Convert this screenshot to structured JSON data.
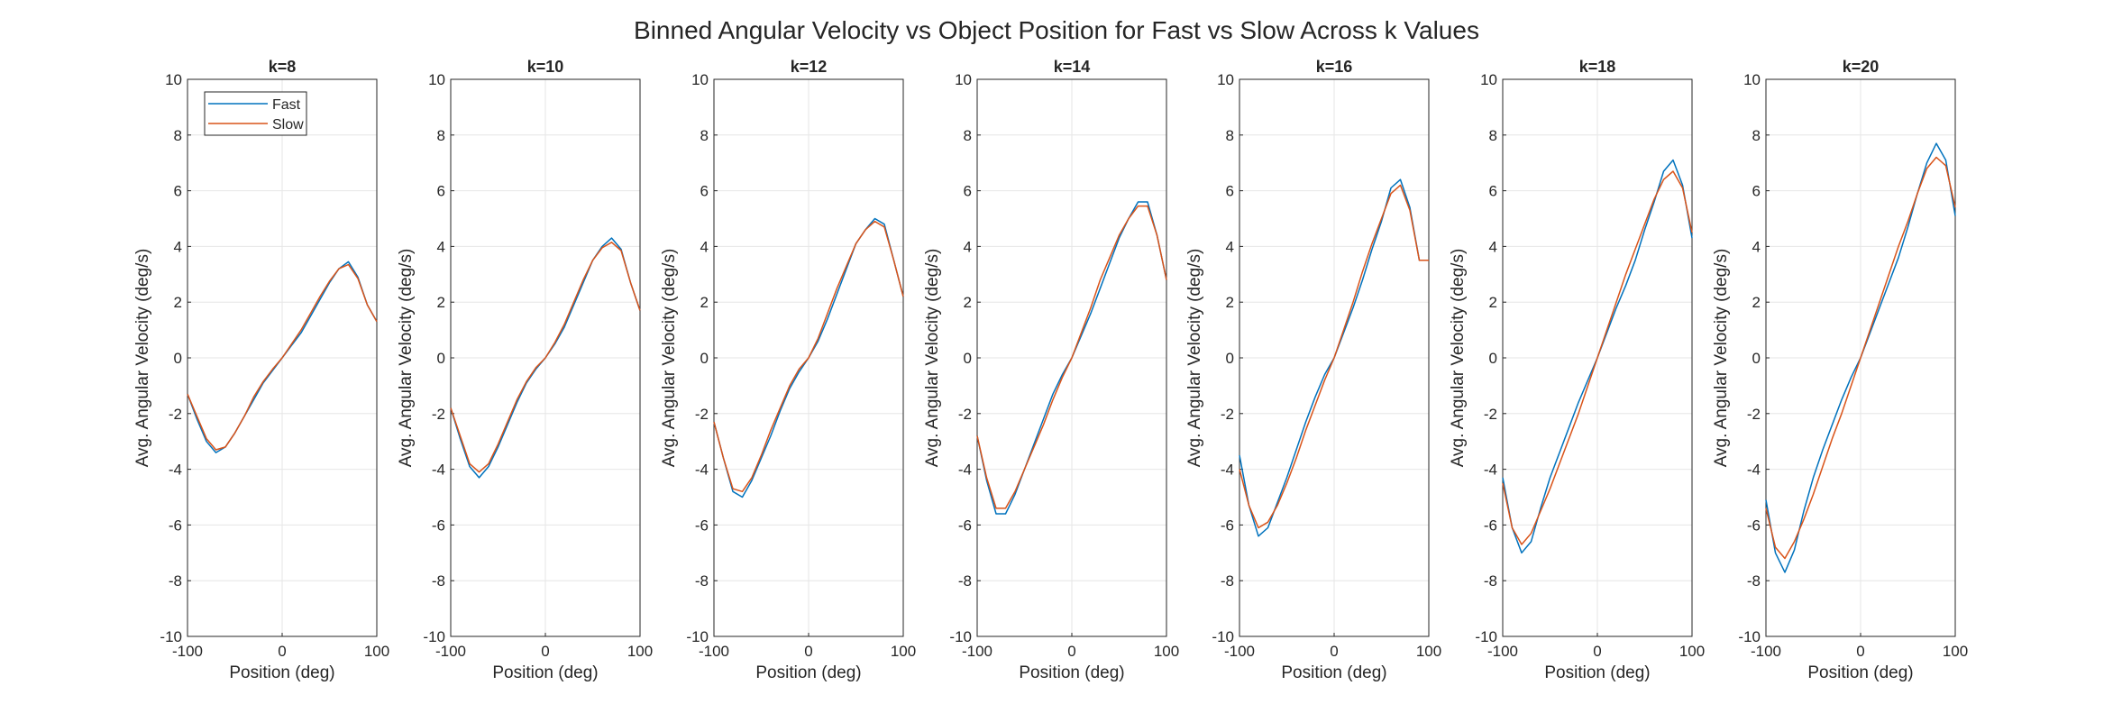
{
  "figure": {
    "title": "Binned Angular Velocity vs Object Position for Fast vs Slow Across k Values"
  },
  "colors": {
    "fast": "#0072BD",
    "slow": "#D95319",
    "axis": "#262626",
    "grid": "#e6e6e6"
  },
  "chart_data": [
    {
      "type": "line",
      "title": "k=8",
      "xlabel": "Position (deg)",
      "ylabel": "Avg. Angular Velocity (deg/s)",
      "xlim": [
        -100,
        100
      ],
      "ylim": [
        -10,
        10
      ],
      "xticks": [
        -100,
        0,
        100
      ],
      "yticks": [
        -10,
        -8,
        -6,
        -4,
        -2,
        0,
        2,
        4,
        6,
        8,
        10
      ],
      "grid": true,
      "legend": "top-left",
      "x": [
        -100,
        -90,
        -80,
        -70,
        -60,
        -50,
        -40,
        -30,
        -20,
        -10,
        0,
        10,
        20,
        30,
        40,
        50,
        60,
        70,
        80,
        90,
        100
      ],
      "series": [
        {
          "name": "Fast",
          "values": [
            -1.3,
            -2.2,
            -3.0,
            -3.4,
            -3.2,
            -2.7,
            -2.1,
            -1.5,
            -0.9,
            -0.45,
            0,
            0.45,
            0.9,
            1.5,
            2.1,
            2.7,
            3.2,
            3.45,
            2.9,
            1.9,
            1.3
          ]
        },
        {
          "name": "Slow",
          "values": [
            -1.3,
            -2.1,
            -2.9,
            -3.3,
            -3.2,
            -2.7,
            -2.1,
            -1.4,
            -0.85,
            -0.4,
            0,
            0.5,
            1.0,
            1.6,
            2.2,
            2.75,
            3.2,
            3.35,
            2.85,
            1.9,
            1.3
          ]
        }
      ]
    },
    {
      "type": "line",
      "title": "k=10",
      "xlabel": "Position (deg)",
      "ylabel": "Avg. Angular Velocity (deg/s)",
      "xlim": [
        -100,
        100
      ],
      "ylim": [
        -10,
        10
      ],
      "xticks": [
        -100,
        0,
        100
      ],
      "yticks": [
        -10,
        -8,
        -6,
        -4,
        -2,
        0,
        2,
        4,
        6,
        8,
        10
      ],
      "grid": true,
      "x": [
        -100,
        -90,
        -80,
        -70,
        -60,
        -50,
        -40,
        -30,
        -20,
        -10,
        0,
        10,
        20,
        30,
        40,
        50,
        60,
        70,
        80,
        90,
        100
      ],
      "series": [
        {
          "name": "Fast",
          "values": [
            -1.8,
            -2.9,
            -3.9,
            -4.3,
            -3.9,
            -3.2,
            -2.4,
            -1.6,
            -0.9,
            -0.4,
            0,
            0.5,
            1.1,
            1.9,
            2.7,
            3.5,
            4.0,
            4.3,
            3.9,
            2.7,
            1.7
          ]
        },
        {
          "name": "Slow",
          "values": [
            -1.8,
            -2.8,
            -3.8,
            -4.1,
            -3.8,
            -3.1,
            -2.3,
            -1.5,
            -0.85,
            -0.35,
            0,
            0.55,
            1.2,
            2.0,
            2.8,
            3.5,
            3.95,
            4.15,
            3.85,
            2.7,
            1.7
          ]
        }
      ]
    },
    {
      "type": "line",
      "title": "k=12",
      "xlabel": "Position (deg)",
      "ylabel": "Avg. Angular Velocity (deg/s)",
      "xlim": [
        -100,
        100
      ],
      "ylim": [
        -10,
        10
      ],
      "xticks": [
        -100,
        0,
        100
      ],
      "yticks": [
        -10,
        -8,
        -6,
        -4,
        -2,
        0,
        2,
        4,
        6,
        8,
        10
      ],
      "grid": true,
      "x": [
        -100,
        -90,
        -80,
        -70,
        -60,
        -50,
        -40,
        -30,
        -20,
        -10,
        0,
        10,
        20,
        30,
        40,
        50,
        60,
        70,
        80,
        90,
        100
      ],
      "series": [
        {
          "name": "Fast",
          "values": [
            -2.3,
            -3.6,
            -4.8,
            -5.0,
            -4.4,
            -3.6,
            -2.8,
            -1.9,
            -1.1,
            -0.5,
            0,
            0.6,
            1.4,
            2.3,
            3.2,
            4.1,
            4.6,
            5.0,
            4.8,
            3.5,
            2.2
          ]
        },
        {
          "name": "Slow",
          "values": [
            -2.3,
            -3.6,
            -4.7,
            -4.8,
            -4.3,
            -3.5,
            -2.6,
            -1.8,
            -1.0,
            -0.4,
            0,
            0.7,
            1.6,
            2.5,
            3.3,
            4.1,
            4.6,
            4.9,
            4.7,
            3.5,
            2.2
          ]
        }
      ]
    },
    {
      "type": "line",
      "title": "k=14",
      "xlabel": "Position (deg)",
      "ylabel": "Avg. Angular Velocity (deg/s)",
      "xlim": [
        -100,
        100
      ],
      "ylim": [
        -10,
        10
      ],
      "xticks": [
        -100,
        0,
        100
      ],
      "yticks": [
        -10,
        -8,
        -6,
        -4,
        -2,
        0,
        2,
        4,
        6,
        8,
        10
      ],
      "grid": true,
      "x": [
        -100,
        -90,
        -80,
        -70,
        -60,
        -50,
        -40,
        -30,
        -20,
        -10,
        0,
        10,
        20,
        30,
        40,
        50,
        60,
        70,
        80,
        90,
        100
      ],
      "series": [
        {
          "name": "Fast",
          "values": [
            -2.8,
            -4.4,
            -5.6,
            -5.6,
            -4.9,
            -4.0,
            -3.1,
            -2.2,
            -1.3,
            -0.6,
            0,
            0.8,
            1.6,
            2.5,
            3.4,
            4.3,
            5.0,
            5.6,
            5.6,
            4.4,
            2.8
          ]
        },
        {
          "name": "Slow",
          "values": [
            -2.8,
            -4.3,
            -5.4,
            -5.4,
            -4.8,
            -4.0,
            -3.2,
            -2.4,
            -1.5,
            -0.7,
            0,
            0.9,
            1.8,
            2.8,
            3.6,
            4.4,
            5.0,
            5.45,
            5.45,
            4.4,
            2.8
          ]
        }
      ]
    },
    {
      "type": "line",
      "title": "k=16",
      "xlabel": "Position (deg)",
      "ylabel": "Avg. Angular Velocity (deg/s)",
      "xlim": [
        -100,
        100
      ],
      "ylim": [
        -10,
        10
      ],
      "xticks": [
        -100,
        0,
        100
      ],
      "yticks": [
        -10,
        -8,
        -6,
        -4,
        -2,
        0,
        2,
        4,
        6,
        8,
        10
      ],
      "grid": true,
      "x": [
        -100,
        -90,
        -80,
        -70,
        -60,
        -50,
        -40,
        -30,
        -20,
        -10,
        0,
        10,
        20,
        30,
        40,
        50,
        60,
        70,
        80,
        90,
        100
      ],
      "series": [
        {
          "name": "Fast",
          "values": [
            -3.5,
            -5.3,
            -6.4,
            -6.1,
            -5.2,
            -4.3,
            -3.3,
            -2.3,
            -1.4,
            -0.6,
            0,
            0.9,
            1.8,
            2.8,
            3.9,
            4.9,
            6.1,
            6.4,
            5.4,
            3.5,
            3.5
          ]
        },
        {
          "name": "Slow",
          "values": [
            -4.0,
            -5.3,
            -6.1,
            -5.9,
            -5.3,
            -4.5,
            -3.6,
            -2.6,
            -1.7,
            -0.8,
            0,
            1.0,
            2.0,
            3.1,
            4.1,
            5.0,
            5.9,
            6.2,
            5.3,
            3.5,
            3.5
          ]
        }
      ]
    },
    {
      "type": "line",
      "title": "k=18",
      "xlabel": "Position (deg)",
      "ylabel": "Avg. Angular Velocity (deg/s)",
      "xlim": [
        -100,
        100
      ],
      "ylim": [
        -10,
        10
      ],
      "xticks": [
        -100,
        0,
        100
      ],
      "yticks": [
        -10,
        -8,
        -6,
        -4,
        -2,
        0,
        2,
        4,
        6,
        8,
        10
      ],
      "grid": true,
      "x": [
        -100,
        -90,
        -80,
        -70,
        -60,
        -50,
        -40,
        -30,
        -20,
        -10,
        0,
        10,
        20,
        30,
        40,
        50,
        60,
        70,
        80,
        90,
        100
      ],
      "series": [
        {
          "name": "Fast",
          "values": [
            -4.3,
            -6.1,
            -7.0,
            -6.6,
            -5.4,
            -4.3,
            -3.4,
            -2.5,
            -1.6,
            -0.8,
            0,
            0.9,
            1.8,
            2.6,
            3.5,
            4.6,
            5.6,
            6.7,
            7.1,
            6.2,
            4.3
          ]
        },
        {
          "name": "Slow",
          "values": [
            -4.5,
            -6.1,
            -6.7,
            -6.3,
            -5.5,
            -4.7,
            -3.8,
            -2.9,
            -2.0,
            -1.0,
            0,
            1.0,
            2.0,
            3.0,
            3.9,
            4.8,
            5.7,
            6.4,
            6.7,
            6.1,
            4.5
          ]
        }
      ]
    },
    {
      "type": "line",
      "title": "k=20",
      "xlabel": "Position (deg)",
      "ylabel": "Avg. Angular Velocity (deg/s)",
      "xlim": [
        -100,
        100
      ],
      "ylim": [
        -10,
        10
      ],
      "xticks": [
        -100,
        0,
        100
      ],
      "yticks": [
        -10,
        -8,
        -6,
        -4,
        -2,
        0,
        2,
        4,
        6,
        8,
        10
      ],
      "grid": true,
      "x": [
        -100,
        -90,
        -80,
        -70,
        -60,
        -50,
        -40,
        -30,
        -20,
        -10,
        0,
        10,
        20,
        30,
        40,
        50,
        60,
        70,
        80,
        90,
        100
      ],
      "series": [
        {
          "name": "Fast",
          "values": [
            -5.1,
            -7.0,
            -7.7,
            -6.9,
            -5.5,
            -4.3,
            -3.3,
            -2.4,
            -1.5,
            -0.7,
            0,
            0.9,
            1.8,
            2.7,
            3.6,
            4.7,
            5.9,
            7.0,
            7.7,
            7.1,
            5.1
          ]
        },
        {
          "name": "Slow",
          "values": [
            -5.4,
            -6.8,
            -7.2,
            -6.6,
            -5.8,
            -4.9,
            -3.9,
            -2.9,
            -2.0,
            -1.0,
            0,
            1.0,
            2.0,
            3.0,
            4.0,
            4.9,
            5.9,
            6.8,
            7.2,
            6.9,
            5.4
          ]
        }
      ]
    }
  ],
  "legend": {
    "entries": [
      "Fast",
      "Slow"
    ]
  }
}
